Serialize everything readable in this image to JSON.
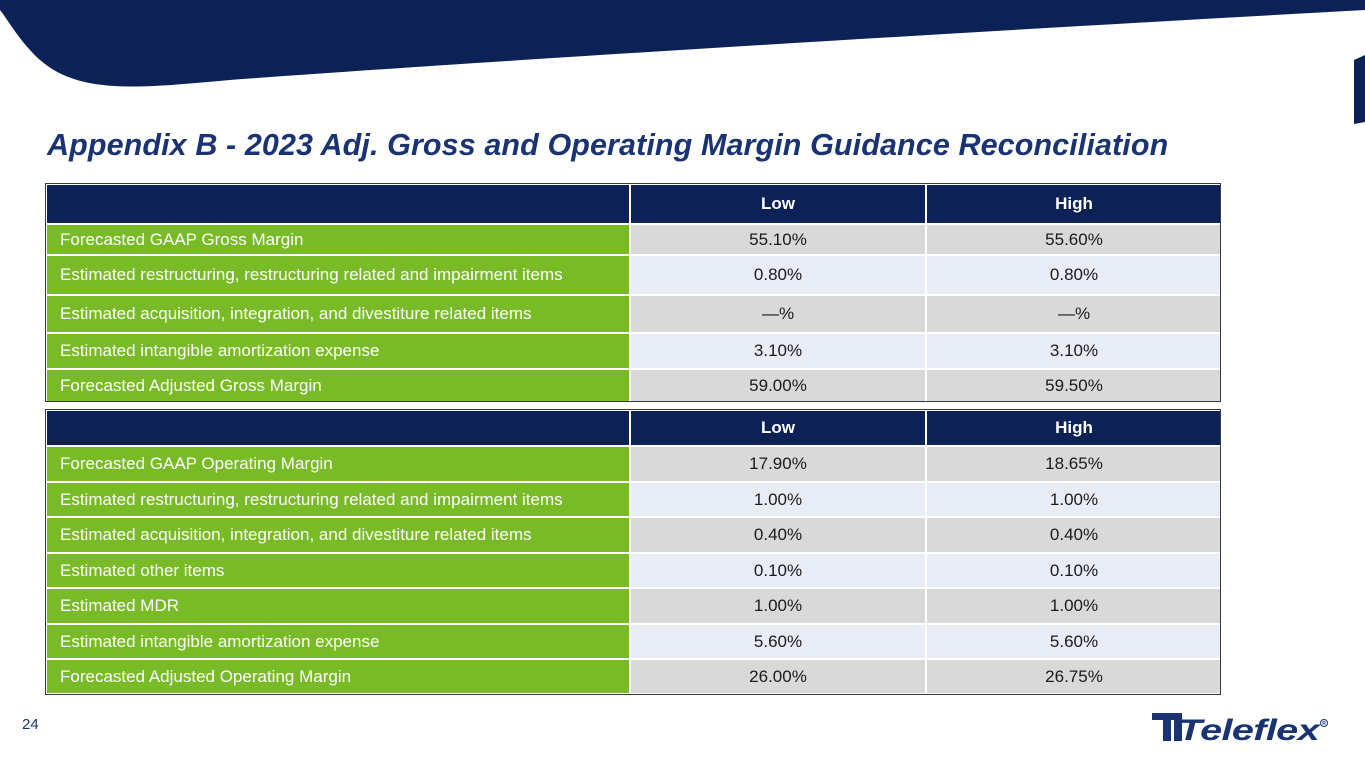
{
  "title": "Appendix B - 2023 Adj. Gross and Operating Margin Guidance Reconciliation",
  "page_number": "24",
  "logo_text": "Teleflex",
  "colors": {
    "navy": "#0c2257",
    "green": "#78bb26",
    "title": "#1a3372",
    "shade": "#d9d9d9",
    "light": "#e8ecf4"
  },
  "gross_table": {
    "headers": [
      "",
      "Low",
      "High"
    ],
    "rows": [
      {
        "label": "Forecasted GAAP Gross Margin",
        "low": "55.10%",
        "high": "55.60%"
      },
      {
        "label": "Estimated restructuring, restructuring related and impairment items",
        "low": "0.80%",
        "high": "0.80%"
      },
      {
        "label": "Estimated acquisition, integration, and divestiture related items",
        "low": "—%",
        "high": "—%"
      },
      {
        "label": "Estimated intangible amortization expense",
        "low": "3.10%",
        "high": "3.10%"
      },
      {
        "label": "Forecasted Adjusted Gross Margin",
        "low": "59.00%",
        "high": "59.50%"
      }
    ]
  },
  "operating_table": {
    "headers": [
      "",
      "Low",
      "High"
    ],
    "rows": [
      {
        "label": "Forecasted GAAP Operating Margin",
        "low": "17.90%",
        "high": "18.65%"
      },
      {
        "label": "Estimated restructuring, restructuring related and impairment items",
        "low": "1.00%",
        "high": "1.00%"
      },
      {
        "label": "Estimated acquisition, integration, and divestiture related items",
        "low": "0.40%",
        "high": "0.40%"
      },
      {
        "label": "Estimated other items",
        "low": "0.10%",
        "high": "0.10%"
      },
      {
        "label": "Estimated MDR",
        "low": "1.00%",
        "high": "1.00%"
      },
      {
        "label": "Estimated intangible amortization expense",
        "low": "5.60%",
        "high": "5.60%"
      },
      {
        "label": "Forecasted Adjusted Operating Margin",
        "low": "26.00%",
        "high": "26.75%"
      }
    ]
  }
}
